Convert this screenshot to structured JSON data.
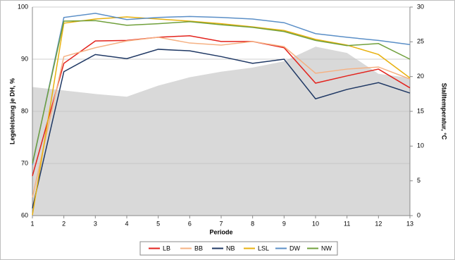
{
  "chart_data": {
    "type": "line",
    "x_label": "Periode",
    "y_label": "Legeleistung je DH, %",
    "y2_label": "Stalltemperatur, °C",
    "x": [
      1,
      2,
      3,
      4,
      5,
      6,
      7,
      8,
      9,
      10,
      11,
      12,
      13
    ],
    "xlim": [
      1,
      13
    ],
    "xticks": [
      1,
      2,
      3,
      4,
      5,
      6,
      7,
      8,
      9,
      10,
      11,
      12,
      13
    ],
    "ylim": [
      60,
      100
    ],
    "yticks": [
      60,
      70,
      80,
      90,
      100
    ],
    "y2lim": [
      0,
      30
    ],
    "y2ticks": [
      0,
      5,
      10,
      15,
      20,
      25,
      30
    ],
    "grid": true,
    "legend": "bottom",
    "series": [
      {
        "color": "#d9d9d9",
        "axis": "y2",
        "area": true,
        "values": [
          18.5,
          18.0,
          17.5,
          17.1,
          18.7,
          19.9,
          20.7,
          21.3,
          22.2,
          24.3,
          23.4,
          20.4,
          19.8
        ]
      },
      {
        "name": "LB",
        "color": "#e3231d",
        "values": [
          67.6,
          89.2,
          93.5,
          93.6,
          94.2,
          94.5,
          93.4,
          93.4,
          92.2,
          85.4,
          86.8,
          88.1,
          84.5
        ]
      },
      {
        "name": "BB",
        "color": "#f5b183",
        "values": [
          63.5,
          90.5,
          92.2,
          93.5,
          94.2,
          93.1,
          92.7,
          93.4,
          92.4,
          87.3,
          88.1,
          88.5,
          86.2
        ]
      },
      {
        "name": "NB",
        "color": "#1f3864",
        "values": [
          61.4,
          87.6,
          90.9,
          90.1,
          91.9,
          91.6,
          90.5,
          89.2,
          90.0,
          82.4,
          84.2,
          85.5,
          83.5
        ]
      },
      {
        "name": "LSL",
        "color": "#e8b10f",
        "values": [
          60.1,
          96.9,
          97.7,
          98.1,
          97.7,
          97.3,
          96.8,
          96.2,
          95.5,
          93.8,
          92.7,
          90.9,
          86.4
        ]
      },
      {
        "name": "DW",
        "color": "#5b8fc7",
        "values": [
          69.7,
          98.0,
          98.8,
          97.6,
          98.0,
          98.2,
          98.0,
          97.7,
          97.0,
          94.9,
          94.2,
          93.6,
          92.8
        ]
      },
      {
        "name": "NW",
        "color": "#70a03c",
        "values": [
          70.0,
          97.3,
          97.4,
          96.5,
          96.8,
          97.2,
          96.6,
          96.1,
          95.3,
          93.6,
          92.6,
          93.0,
          90.0
        ]
      }
    ]
  }
}
